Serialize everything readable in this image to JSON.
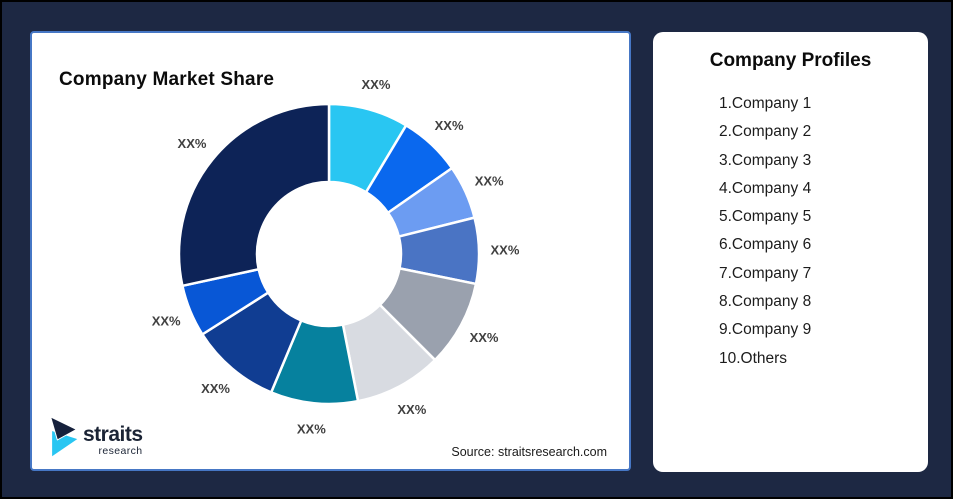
{
  "chart_card": {
    "title": "Company Market Share",
    "source_note": "Source: straitsresearch.com",
    "border_color": "#4677C5"
  },
  "chart_data": {
    "type": "donut",
    "title": "Company Market Share",
    "legend": "none",
    "value_labels_masked": true,
    "inner_radius_ratio": 0.48,
    "start_angle_deg": 0,
    "direction": "clockwise",
    "gap_color": "#ffffff",
    "segments": [
      {
        "name": "Company 1",
        "label": "XX%",
        "share_pct_est": 8.6,
        "color": "#29C6F2"
      },
      {
        "name": "Company 2",
        "label": "XX%",
        "share_pct_est": 6.7,
        "color": "#0A68EE"
      },
      {
        "name": "Company 3",
        "label": "XX%",
        "share_pct_est": 5.8,
        "color": "#6C9CF2"
      },
      {
        "name": "Company 4",
        "label": "XX%",
        "share_pct_est": 7.1,
        "color": "#4A74C4"
      },
      {
        "name": "Company 5",
        "label": "XX%",
        "share_pct_est": 9.3,
        "color": "#9AA1AE"
      },
      {
        "name": "Company 6",
        "label": "XX%",
        "share_pct_est": 9.4,
        "color": "#D8DBE1"
      },
      {
        "name": "Company 7",
        "label": "XX%",
        "share_pct_est": 9.4,
        "color": "#06819E"
      },
      {
        "name": "Company 8",
        "label": "XX%",
        "share_pct_est": 9.7,
        "color": "#103D92"
      },
      {
        "name": "Company 9",
        "label": "XX%",
        "share_pct_est": 5.6,
        "color": "#0857D6"
      },
      {
        "name": "Others",
        "label": "XX%",
        "share_pct_est": 28.4,
        "color": "#0D2357"
      }
    ]
  },
  "profiles_card": {
    "title": "Company Profiles",
    "items": [
      "1.Company 1",
      "2.Company 2",
      "3.Company 3",
      "4.Company 4",
      "5.Company 5",
      "6.Company 6",
      "7.Company 7",
      "8.Company 8",
      "9.Company 9",
      "10.Others"
    ]
  },
  "logo": {
    "name": "straits",
    "sub": "research",
    "mark_navy": "#16213C",
    "mark_cyan": "#29C6F2"
  },
  "colors": {
    "background": "#1D2843",
    "frame_border": "#000000",
    "label_text": "#404040"
  }
}
